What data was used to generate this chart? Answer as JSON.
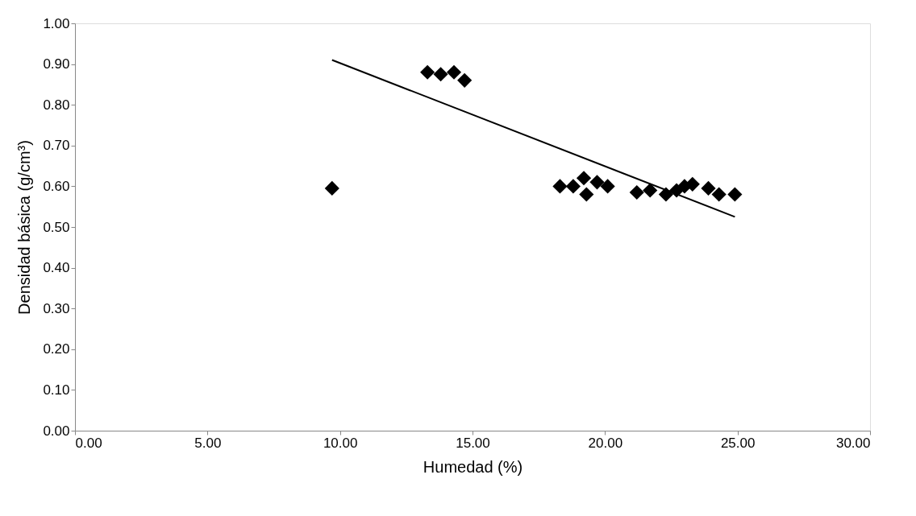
{
  "chart_data": {
    "type": "scatter",
    "xlabel": "Humedad (%)",
    "ylabel": "Densidad básica (g/cm³)",
    "xlim": [
      0,
      30
    ],
    "xticks": [
      {
        "value": 0,
        "label": "0.00"
      },
      {
        "value": 5,
        "label": "5.00"
      },
      {
        "value": 10,
        "label": "10.00"
      },
      {
        "value": 15,
        "label": "15.00"
      },
      {
        "value": 20,
        "label": "20.00"
      },
      {
        "value": 25,
        "label": "25.00"
      },
      {
        "value": 30,
        "label": "30.00"
      }
    ],
    "ylim": [
      0,
      1
    ],
    "yticks": [
      {
        "value": 0,
        "label": "0.00"
      },
      {
        "value": 0.1,
        "label": "0.10"
      },
      {
        "value": 0.2,
        "label": "0.20"
      },
      {
        "value": 0.3,
        "label": "0.30"
      },
      {
        "value": 0.4,
        "label": "0.40"
      },
      {
        "value": 0.5,
        "label": "0.50"
      },
      {
        "value": 0.6,
        "label": "0.60"
      },
      {
        "value": 0.7,
        "label": "0.70"
      },
      {
        "value": 0.8,
        "label": "0.80"
      },
      {
        "value": 0.9,
        "label": "0.90"
      },
      {
        "value": 1.0,
        "label": "1.00"
      }
    ],
    "grid": false,
    "series": [
      {
        "color": "#000000",
        "marker": "diamond",
        "x": [
          9.7,
          13.3,
          13.8,
          14.3,
          14.7,
          18.3,
          18.8,
          19.2,
          19.3,
          19.7,
          20.1,
          21.2,
          21.7,
          22.3,
          22.7,
          23.0,
          23.3,
          23.9,
          24.3,
          24.9
        ],
        "values": [
          0.595,
          0.88,
          0.875,
          0.88,
          0.86,
          0.6,
          0.6,
          0.62,
          0.58,
          0.61,
          0.6,
          0.585,
          0.59,
          0.58,
          0.59,
          0.6,
          0.605,
          0.595,
          0.58,
          0.58
        ]
      },
      {
        "type": "line",
        "color": "#000000",
        "line_style": "solid",
        "x": [
          9.7,
          24.9
        ],
        "values": [
          0.91,
          0.525
        ]
      }
    ]
  }
}
